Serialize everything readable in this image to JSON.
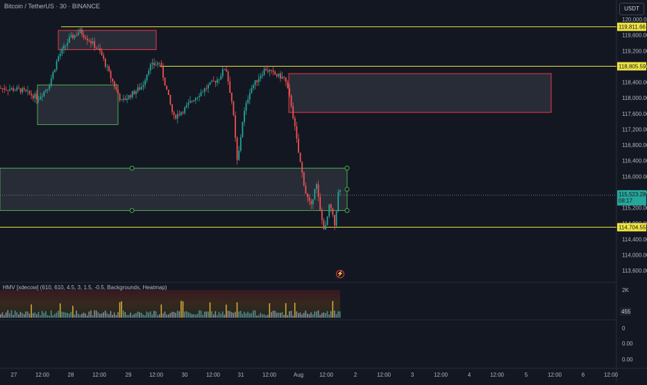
{
  "header": {
    "title": "Bitcoin / TetherUS · 30 · BINANCE",
    "currency": "USDT"
  },
  "indicator": {
    "label": "HMV [xdecow] (610, 610, 4.5, 3, 1.5, -0.5, Backgrounds, Heatmap)"
  },
  "chart_data": {
    "type": "candlestick",
    "y_ticks": [
      "120,000.00",
      "119,600.00",
      "119,200.00",
      "118,800.00",
      "118,400.00",
      "118,000.00",
      "117,600.00",
      "117,200.00",
      "116,800.00",
      "116,400.00",
      "116,000.00",
      "115,600.00",
      "115,200.00",
      "114,800.00",
      "114,400.00",
      "114,000.00",
      "113,600.00"
    ],
    "ylim": [
      113500,
      120150
    ],
    "x_ticks": [
      "27",
      "12:00",
      "28",
      "12:00",
      "29",
      "12:00",
      "30",
      "12:00",
      "31",
      "12:00",
      "Aug",
      "12:00",
      "2",
      "12:00",
      "3",
      "12:00",
      "4",
      "12:00",
      "5",
      "12:00",
      "6",
      "12:00"
    ],
    "price_lines": [
      {
        "value": 119811.66,
        "label": "119,811.66",
        "color": "#f0e442"
      },
      {
        "value": 118805.59,
        "label": "118,805.59",
        "color": "#f0e442"
      },
      {
        "value": 114704.55,
        "label": "114,704.55",
        "color": "#f0e442"
      }
    ],
    "current_price": {
      "value": 115523.28,
      "label": "115,523.28",
      "countdown": "08:17"
    },
    "zones": [
      {
        "kind": "supply",
        "color": "#f23645",
        "y_top": 119720,
        "y_bottom": 119230
      },
      {
        "kind": "demand",
        "color": "#4caf50",
        "y_top": 118330,
        "y_bottom": 117320
      },
      {
        "kind": "supply",
        "color": "#f23645",
        "y_top": 118620,
        "y_bottom": 117630
      },
      {
        "kind": "demand",
        "color": "#4caf50",
        "y_top": 116210,
        "y_bottom": 115130
      }
    ],
    "volume_axis": [
      "2K",
      "455"
    ],
    "lower_axis": [
      "0",
      "0.00",
      "0.00"
    ],
    "colors": {
      "up": "#26a69a",
      "down": "#ef5350",
      "line": "#f0e442",
      "bg": "#131722"
    }
  }
}
